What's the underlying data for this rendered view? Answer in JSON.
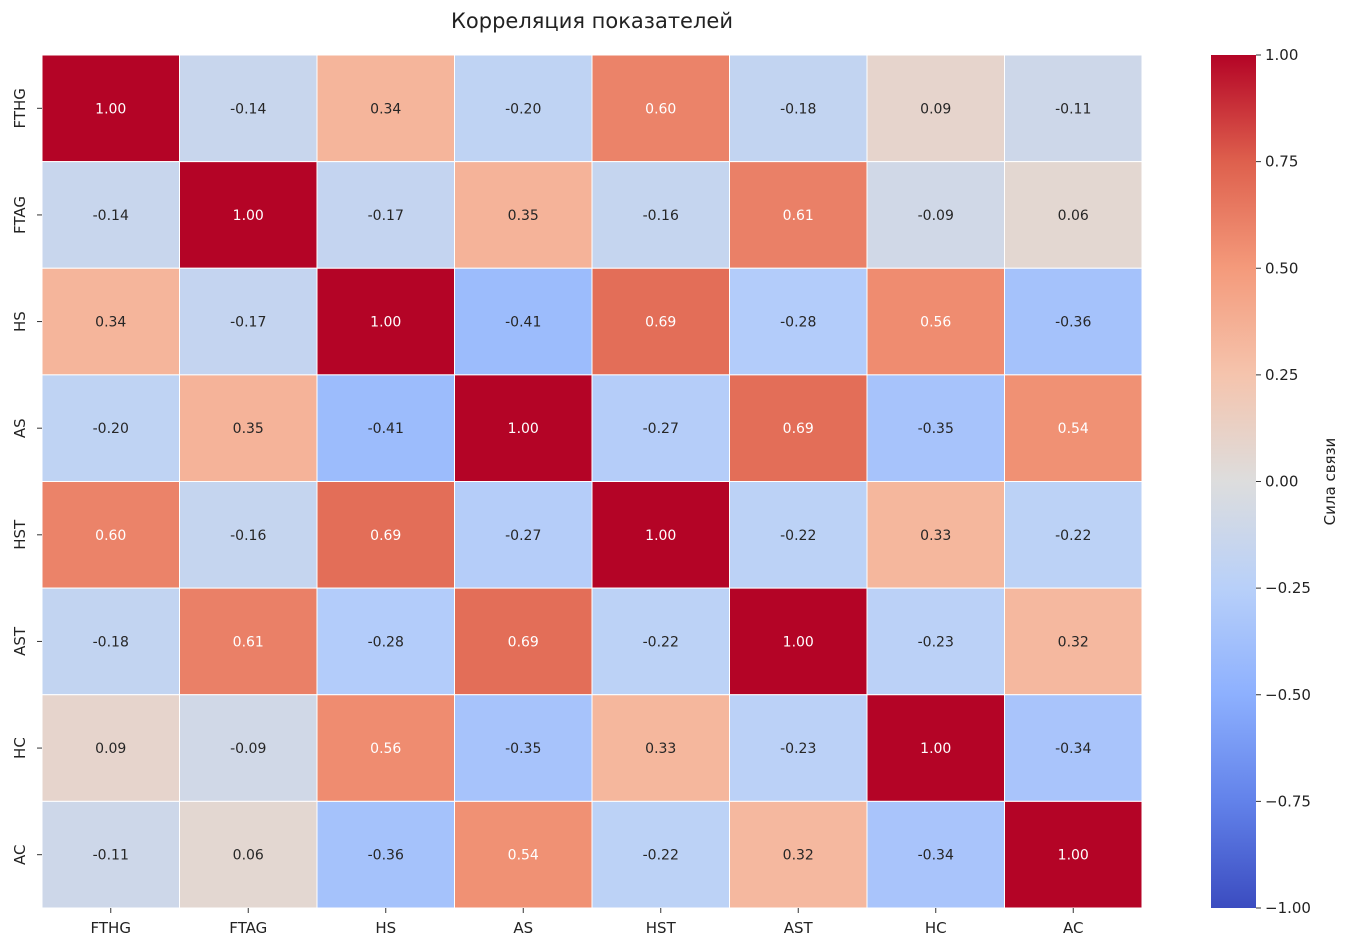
{
  "chart_data": {
    "type": "heatmap",
    "title": "Корреляция показателей",
    "row_labels": [
      "FTHG",
      "FTAG",
      "HS",
      "AS",
      "HST",
      "AST",
      "HC",
      "AC"
    ],
    "col_labels": [
      "FTHG",
      "FTAG",
      "HS",
      "AS",
      "HST",
      "AST",
      "HC",
      "AC"
    ],
    "values": [
      [
        1.0,
        -0.14,
        0.34,
        -0.2,
        0.6,
        -0.18,
        0.09,
        -0.11
      ],
      [
        -0.14,
        1.0,
        -0.17,
        0.35,
        -0.16,
        0.61,
        -0.09,
        0.06
      ],
      [
        0.34,
        -0.17,
        1.0,
        -0.41,
        0.69,
        -0.28,
        0.56,
        -0.36
      ],
      [
        -0.2,
        0.35,
        -0.41,
        1.0,
        -0.27,
        0.69,
        -0.35,
        0.54
      ],
      [
        0.6,
        -0.16,
        0.69,
        -0.27,
        1.0,
        -0.22,
        0.33,
        -0.22
      ],
      [
        -0.18,
        0.61,
        -0.28,
        0.69,
        -0.22,
        1.0,
        -0.23,
        0.32
      ],
      [
        0.09,
        -0.09,
        0.56,
        -0.35,
        0.33,
        -0.23,
        1.0,
        -0.34
      ],
      [
        -0.11,
        0.06,
        -0.36,
        0.54,
        -0.22,
        0.32,
        -0.34,
        1.0
      ]
    ],
    "value_format": "2 decimals",
    "colormap": "coolwarm",
    "vmin": -1.0,
    "vmax": 1.0,
    "colorbar": {
      "label": "Сила связи",
      "ticks": [
        "1.00",
        "0.75",
        "0.50",
        "0.25",
        "0.00",
        "−0.25",
        "−0.50",
        "−0.75",
        "−1.00"
      ],
      "tick_values": [
        1.0,
        0.75,
        0.5,
        0.25,
        0.0,
        -0.25,
        -0.5,
        -0.75,
        -1.0
      ],
      "placement": "right"
    },
    "grid": true,
    "colors": {
      "cold": "#3b4cc0",
      "neutral": "#dddddd",
      "warm": "#b40426",
      "text_dark": "#262626",
      "text_light": "#ffffff",
      "cell_border": "#ffffff"
    }
  }
}
